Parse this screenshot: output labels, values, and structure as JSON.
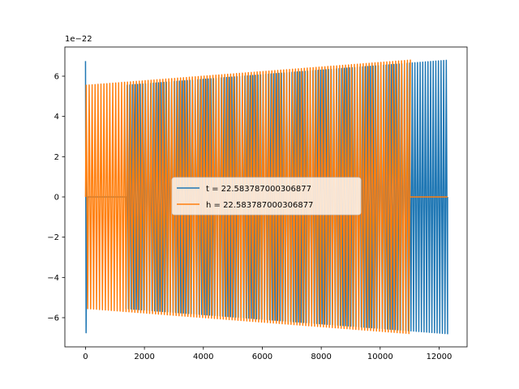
{
  "chart_data": {
    "type": "line",
    "title": "",
    "xlabel": "",
    "ylabel": "",
    "xlim": [
      -700,
      12950
    ],
    "ylim": [
      -7.45,
      7.45
    ],
    "y_scale_label": "1e−22",
    "x_ticks": [
      0,
      2000,
      4000,
      6000,
      8000,
      10000,
      12000
    ],
    "x_tick_labels": [
      "0",
      "2000",
      "4000",
      "6000",
      "8000",
      "10000",
      "12000"
    ],
    "y_ticks": [
      -6,
      -4,
      -2,
      0,
      2,
      4,
      6
    ],
    "y_tick_labels": [
      "−6",
      "−4",
      "−2",
      "0",
      "2",
      "4",
      "6"
    ],
    "grid": false,
    "legend_position": "center",
    "series": [
      {
        "name": "t = 22.583787000306877",
        "color": "#1f77b4",
        "x_start": 0,
        "x_end": 12288,
        "zero_segment": [
          60,
          1370
        ],
        "cycles": 123,
        "amplitude_start": 6.75,
        "amplitude_mid": 5.55,
        "amplitude_end": 6.8
      },
      {
        "name": "h = 22.583787000306877",
        "color": "#ff7f0e",
        "x_start": 0,
        "x_end": 12288,
        "zero_segment": [
          11000,
          12288
        ],
        "cycles": 110,
        "amplitude_start": 5.55,
        "amplitude_end": 6.8
      }
    ]
  }
}
